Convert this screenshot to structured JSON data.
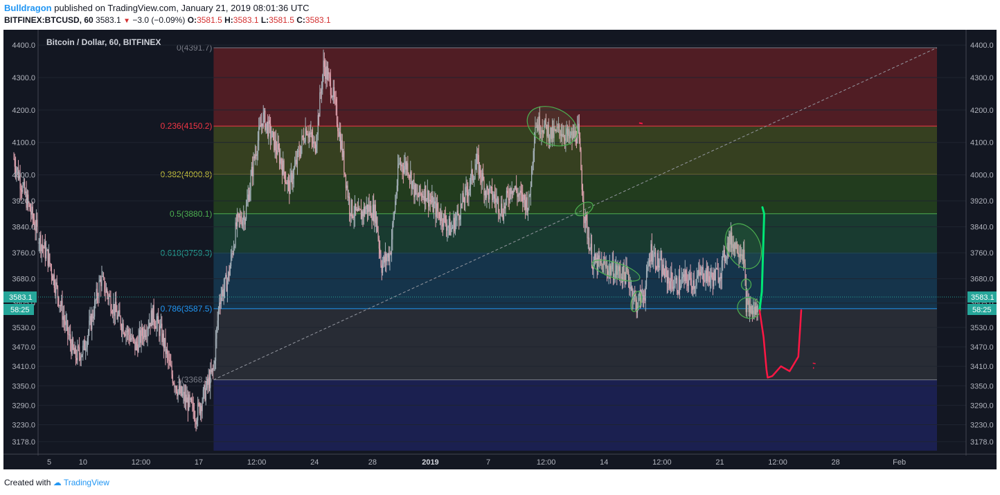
{
  "header": {
    "author": "Bulldragon",
    "published": "published on TradingView.com, January 21, 2019 08:01:36 UTC",
    "symbol": "BITFINEX:BTCUSD, 60",
    "price": "3583.1",
    "change": "−3.0 (−0.09%)",
    "o_label": "O:",
    "o_value": "3581.5",
    "h_label": "H:",
    "h_value": "3583.1",
    "l_label": "L:",
    "l_value": "3581.5",
    "c_label": "C:",
    "c_value": "3583.1"
  },
  "footer": {
    "created_with": "Created with",
    "brand": "TradingView"
  },
  "colors": {
    "background": "#131722",
    "bull": "#a8b4bd",
    "bear": "#e3a6b2",
    "fib_red": "#f23645",
    "fib_yellow": "#c9c43e",
    "fib_green": "#4caf50",
    "fib_teal": "#26a69a",
    "fib_blue": "#2196f3",
    "fib_gray": "#787b86",
    "drawing_green": "#00e676",
    "drawing_red": "#ff1744",
    "price_tag": "#26a69a"
  },
  "chart_data": {
    "type": "candlestick",
    "title": "Bitcoin / Dollar, 60, BITFINEX",
    "ylim": [
      3150,
      4430
    ],
    "y_ticks": [
      4400.0,
      4300.0,
      4200.0,
      4100.0,
      4000.0,
      3920.0,
      3840.0,
      3760.0,
      3680.0,
      3605.0,
      3530.0,
      3470.0,
      3410.0,
      3350.0,
      3290.0,
      3230.0,
      3178.0
    ],
    "x_ticks": [
      "5",
      "10",
      "12:00",
      "17",
      "12:00",
      "24",
      "28",
      "2019",
      "7",
      "12:00",
      "14",
      "12:00",
      "21",
      "12:00",
      "28",
      "Feb"
    ],
    "x_tick_pos": [
      0,
      1.35,
      2.35,
      3.35,
      4.35,
      5.35,
      6.35,
      7.35,
      8.35,
      9.35,
      10.35,
      11.35,
      12.35,
      13.35,
      14.35,
      15.45
    ],
    "current_price": "3583.1",
    "countdown": "58:25",
    "fib_levels": [
      {
        "ratio": "0",
        "price": 4391.7,
        "label": "0(4391.7)"
      },
      {
        "ratio": "0.236",
        "price": 4150.2,
        "label": "0.236(4150.2)"
      },
      {
        "ratio": "0.382",
        "price": 4000.8,
        "label": "0.382(4000.8)"
      },
      {
        "ratio": "0.5",
        "price": 3880.1,
        "label": "0.5(3880.1)"
      },
      {
        "ratio": "0.618",
        "price": 3759.3,
        "label": "0.618(3759.3)"
      },
      {
        "ratio": "0.786",
        "price": 3587.5,
        "label": "0.786(3587.5)"
      },
      {
        "ratio": "1",
        "price": 3368.5,
        "label": "1(3368.5)"
      }
    ],
    "price_path": [
      [
        0.0,
        4050
      ],
      [
        0.15,
        3960
      ],
      [
        0.3,
        3880
      ],
      [
        0.45,
        3800
      ],
      [
        0.6,
        3740
      ],
      [
        0.75,
        3640
      ],
      [
        0.9,
        3530
      ],
      [
        1.05,
        3440
      ],
      [
        1.2,
        3460
      ],
      [
        1.35,
        3560
      ],
      [
        1.5,
        3680
      ],
      [
        1.65,
        3620
      ],
      [
        1.8,
        3560
      ],
      [
        1.95,
        3520
      ],
      [
        2.1,
        3470
      ],
      [
        2.25,
        3520
      ],
      [
        2.4,
        3570
      ],
      [
        2.55,
        3510
      ],
      [
        2.7,
        3400
      ],
      [
        2.85,
        3330
      ],
      [
        3.0,
        3300
      ],
      [
        3.15,
        3260
      ],
      [
        3.3,
        3330
      ],
      [
        3.45,
        3400
      ],
      [
        3.55,
        3620
      ],
      [
        3.7,
        3680
      ],
      [
        3.85,
        3850
      ],
      [
        4.0,
        3880
      ],
      [
        4.15,
        4050
      ],
      [
        4.3,
        4180
      ],
      [
        4.45,
        4120
      ],
      [
        4.6,
        4050
      ],
      [
        4.75,
        3960
      ],
      [
        4.9,
        4050
      ],
      [
        5.05,
        4150
      ],
      [
        5.2,
        4080
      ],
      [
        5.35,
        4340
      ],
      [
        5.5,
        4260
      ],
      [
        5.65,
        4100
      ],
      [
        5.8,
        3900
      ],
      [
        5.95,
        3870
      ],
      [
        6.1,
        3900
      ],
      [
        6.25,
        3880
      ],
      [
        6.35,
        3720
      ],
      [
        6.5,
        3760
      ],
      [
        6.65,
        4030
      ],
      [
        6.8,
        4030
      ],
      [
        6.95,
        3930
      ],
      [
        7.1,
        3950
      ],
      [
        7.25,
        3900
      ],
      [
        7.4,
        3870
      ],
      [
        7.55,
        3830
      ],
      [
        7.7,
        3890
      ],
      [
        7.85,
        3960
      ],
      [
        8.0,
        4040
      ],
      [
        8.15,
        3950
      ],
      [
        8.3,
        3930
      ],
      [
        8.45,
        3890
      ],
      [
        8.6,
        3970
      ],
      [
        8.75,
        3930
      ],
      [
        8.9,
        3910
      ],
      [
        9.0,
        4160
      ],
      [
        9.15,
        4150
      ],
      [
        9.3,
        4120
      ],
      [
        9.45,
        4140
      ],
      [
        9.6,
        4110
      ],
      [
        9.75,
        4130
      ],
      [
        9.85,
        3880
      ],
      [
        10.0,
        3730
      ],
      [
        10.15,
        3720
      ],
      [
        10.3,
        3710
      ],
      [
        10.45,
        3700
      ],
      [
        10.6,
        3690
      ],
      [
        10.75,
        3600
      ],
      [
        10.9,
        3640
      ],
      [
        11.0,
        3770
      ],
      [
        11.15,
        3720
      ],
      [
        11.3,
        3680
      ],
      [
        11.45,
        3660
      ],
      [
        11.6,
        3680
      ],
      [
        11.75,
        3670
      ],
      [
        11.9,
        3700
      ],
      [
        12.05,
        3680
      ],
      [
        12.2,
        3700
      ],
      [
        12.35,
        3800
      ],
      [
        12.5,
        3780
      ],
      [
        12.6,
        3760
      ],
      [
        12.65,
        3600
      ],
      [
        12.75,
        3580
      ],
      [
        12.85,
        3583
      ]
    ],
    "green_projection": [
      [
        12.88,
        3583
      ],
      [
        12.92,
        3640
      ],
      [
        12.96,
        3880
      ],
      [
        12.93,
        3900
      ]
    ],
    "red_projection": [
      [
        12.88,
        3583
      ],
      [
        12.95,
        3500
      ],
      [
        13.0,
        3400
      ],
      [
        13.02,
        3375
      ],
      [
        13.1,
        3380
      ],
      [
        13.25,
        3410
      ],
      [
        13.4,
        3395
      ],
      [
        13.55,
        3440
      ],
      [
        13.6,
        3583
      ]
    ]
  }
}
